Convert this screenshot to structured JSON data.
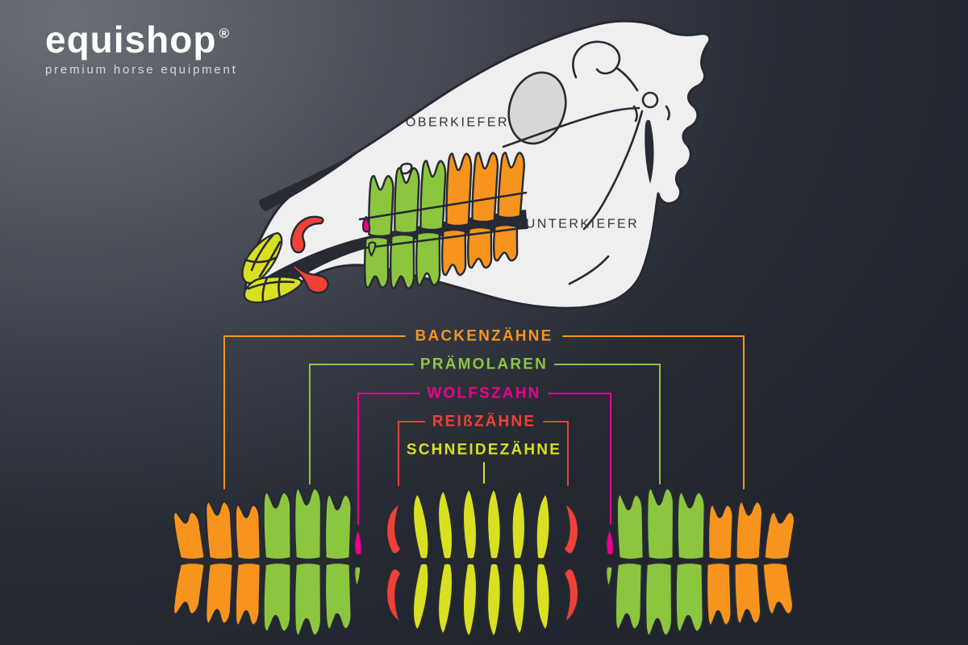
{
  "brand": {
    "name": "equishop",
    "registered": "®",
    "tagline": "premium horse equipment"
  },
  "skull_labels": {
    "upper_jaw": "OBERKIEFER",
    "lower_jaw": "UNTERKIEFER"
  },
  "legend": {
    "items": [
      {
        "label": "BACKENZÄHNE",
        "color": "#f7941d"
      },
      {
        "label": "PRÄMOLAREN",
        "color": "#8cc63f"
      },
      {
        "label": "WOLFSZAHN",
        "color": "#ec008c"
      },
      {
        "label": "REIßZÄHNE",
        "color": "#ef4136"
      },
      {
        "label": "SCHNEIDEZÄHNE",
        "color": "#d9e021"
      }
    ]
  },
  "teeth_chart": {
    "left_group": {
      "top_row": [
        "molar",
        "molar",
        "molar",
        "premolar",
        "premolar",
        "premolar",
        "wolf_tooth"
      ],
      "bottom_row": [
        "molar",
        "molar",
        "molar",
        "premolar",
        "premolar",
        "premolar",
        "small_premolar"
      ]
    },
    "middle_group": {
      "top_row": [
        "canine",
        "incisor",
        "incisor",
        "incisor",
        "incisor",
        "incisor",
        "incisor",
        "canine"
      ],
      "bottom_row": [
        "canine",
        "incisor",
        "incisor",
        "incisor",
        "incisor",
        "incisor",
        "incisor",
        "canine"
      ]
    },
    "right_group": {
      "top_row": [
        "wolf_tooth",
        "premolar",
        "premolar",
        "premolar",
        "molar",
        "molar",
        "molar"
      ],
      "bottom_row": [
        "small_premolar",
        "premolar",
        "premolar",
        "premolar",
        "molar",
        "molar",
        "molar"
      ]
    }
  },
  "skull_teeth": {
    "upper_row": [
      "premolar",
      "premolar",
      "premolar",
      "molar",
      "molar",
      "molar"
    ],
    "lower_row": [
      "premolar",
      "premolar",
      "premolar",
      "molar",
      "molar",
      "molar"
    ],
    "upper_extras": [
      "wolf_tooth",
      "canine",
      "incisor",
      "incisor",
      "incisor"
    ],
    "lower_extras": [
      "small_premolar",
      "canine",
      "incisor",
      "incisor",
      "incisor"
    ]
  },
  "colors": {
    "background_dark": "#20242d",
    "background_light": "#696d75",
    "skull_bone": "#efefef",
    "skull_socket": "#d7d7d7",
    "outline": "#262a33",
    "outline_soft": "#272b34",
    "molars_orange": "#f7941d",
    "premolars_green": "#8cc63f",
    "incisors_yellow": "#d9e021",
    "canines_red": "#ef4136",
    "wolf_tooth_pink": "#ec008c",
    "label_dark": "#2e323b",
    "logo_white": "#ffffff",
    "tagline_gray": "#d9dadc"
  }
}
